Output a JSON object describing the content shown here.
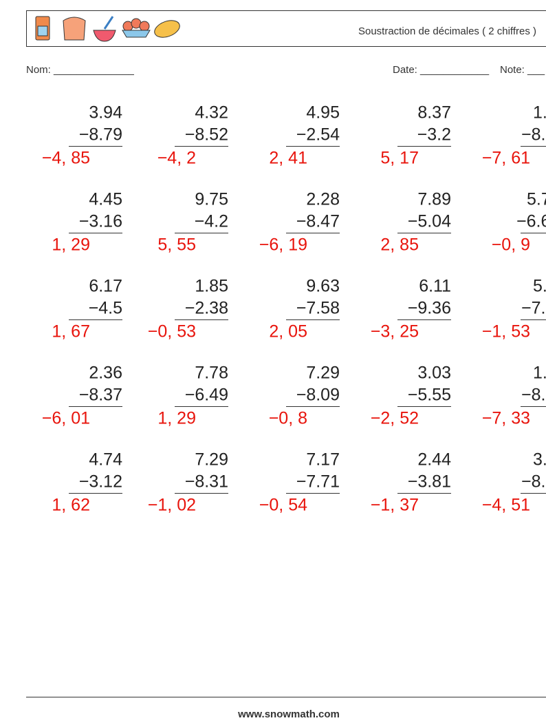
{
  "header": {
    "title": "Soustraction de décimales ( 2 chiffres )"
  },
  "fields": {
    "name": "Nom: ______________",
    "date": "Date: ____________",
    "note": "Note: ___"
  },
  "problems": [
    {
      "top": "3.94",
      "bottom": "−8.79",
      "answer": "−4, 85"
    },
    {
      "top": "4.32",
      "bottom": "−8.52",
      "answer": "−4, 2"
    },
    {
      "top": "4.95",
      "bottom": "−2.54",
      "answer": "2, 41"
    },
    {
      "top": "8.37",
      "bottom": "−3.2",
      "answer": "5, 17"
    },
    {
      "top": "1.",
      "bottom": "−8.",
      "answer": "−7, 61"
    },
    {
      "top": "4.45",
      "bottom": "−3.16",
      "answer": "1, 29"
    },
    {
      "top": "9.75",
      "bottom": "−4.2",
      "answer": "5, 55"
    },
    {
      "top": "2.28",
      "bottom": "−8.47",
      "answer": "−6, 19"
    },
    {
      "top": "7.89",
      "bottom": "−5.04",
      "answer": "2, 85"
    },
    {
      "top": "5.7",
      "bottom": "−6.6",
      "answer": "−0, 9"
    },
    {
      "top": "6.17",
      "bottom": "−4.5",
      "answer": "1, 67"
    },
    {
      "top": "1.85",
      "bottom": "−2.38",
      "answer": "−0, 53"
    },
    {
      "top": "9.63",
      "bottom": "−7.58",
      "answer": "2, 05"
    },
    {
      "top": "6.11",
      "bottom": "−9.36",
      "answer": "−3, 25"
    },
    {
      "top": "5.",
      "bottom": "−7.",
      "answer": "−1, 53"
    },
    {
      "top": "2.36",
      "bottom": "−8.37",
      "answer": "−6, 01"
    },
    {
      "top": "7.78",
      "bottom": "−6.49",
      "answer": "1, 29"
    },
    {
      "top": "7.29",
      "bottom": "−8.09",
      "answer": "−0, 8"
    },
    {
      "top": "3.03",
      "bottom": "−5.55",
      "answer": "−2, 52"
    },
    {
      "top": "1.",
      "bottom": "−8.",
      "answer": "−7, 33"
    },
    {
      "top": "4.74",
      "bottom": "−3.12",
      "answer": "1, 62"
    },
    {
      "top": "7.29",
      "bottom": "−8.31",
      "answer": "−1, 02"
    },
    {
      "top": "7.17",
      "bottom": "−7.71",
      "answer": "−0, 54"
    },
    {
      "top": "2.44",
      "bottom": "−3.81",
      "answer": "−1, 37"
    },
    {
      "top": "3.",
      "bottom": "−8.",
      "answer": "−4, 51"
    }
  ],
  "footer": "www.snowmath.com"
}
